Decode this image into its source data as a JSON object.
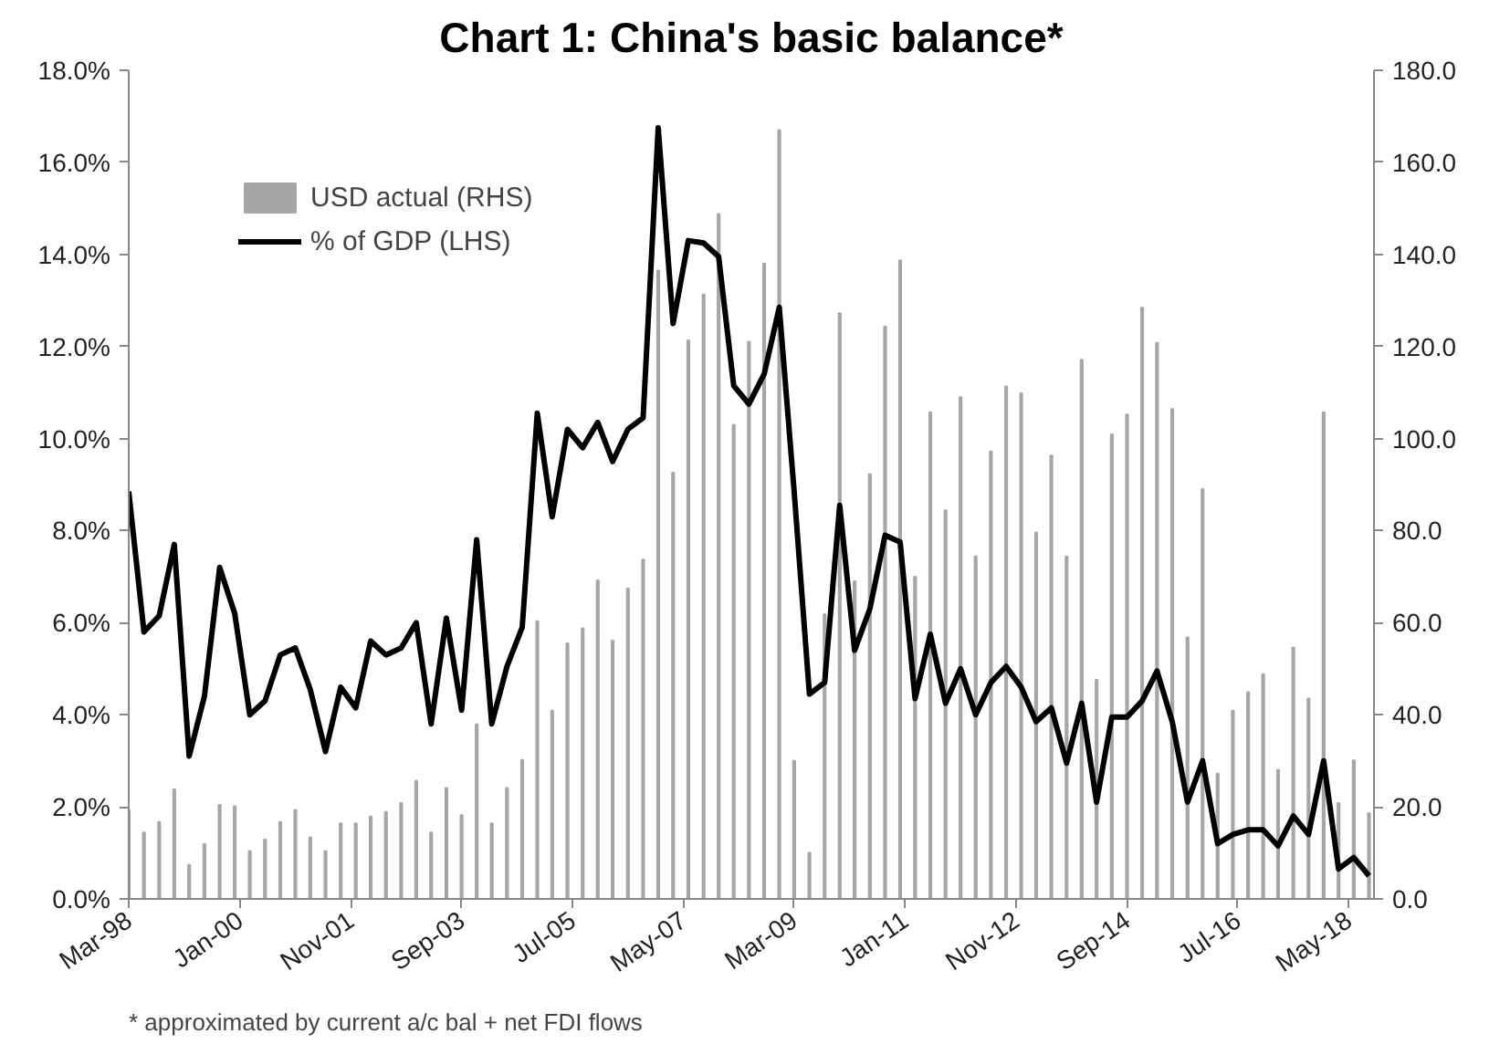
{
  "chart_data": {
    "type": "bar",
    "title": "Chart 1: China's basic balance*",
    "x": [
      "1998-03",
      "1998-06",
      "1998-09",
      "1998-12",
      "1999-03",
      "1999-06",
      "1999-09",
      "1999-12",
      "2000-03",
      "2000-06",
      "2000-09",
      "2000-12",
      "2001-03",
      "2001-06",
      "2001-09",
      "2001-12",
      "2002-03",
      "2002-06",
      "2002-09",
      "2002-12",
      "2003-03",
      "2003-06",
      "2003-09",
      "2003-12",
      "2004-03",
      "2004-06",
      "2004-09",
      "2004-12",
      "2005-03",
      "2005-06",
      "2005-09",
      "2005-12",
      "2006-03",
      "2006-06",
      "2006-09",
      "2006-12",
      "2007-03",
      "2007-06",
      "2007-09",
      "2007-12",
      "2008-03",
      "2008-06",
      "2008-09",
      "2008-12",
      "2009-03",
      "2009-06",
      "2009-09",
      "2009-12",
      "2010-03",
      "2010-06",
      "2010-09",
      "2010-12",
      "2011-03",
      "2011-06",
      "2011-09",
      "2011-12",
      "2012-03",
      "2012-06",
      "2012-09",
      "2012-12",
      "2013-03",
      "2013-06",
      "2013-09",
      "2013-12",
      "2014-03",
      "2014-06",
      "2014-09",
      "2014-12",
      "2015-03",
      "2015-06",
      "2015-09",
      "2015-12",
      "2016-03",
      "2016-06",
      "2016-09",
      "2016-12",
      "2017-03",
      "2017-06",
      "2017-09",
      "2017-12",
      "2018-03",
      "2018-06",
      "2018-09"
    ],
    "series": [
      {
        "name": "USD actual (RHS)",
        "axis": "y2",
        "color": "#a6a6a6",
        "values": [
          19.3,
          14.4,
          16.7,
          23.8,
          7.4,
          11.9,
          20.4,
          20.1,
          10.4,
          12.9,
          16.7,
          19.3,
          13.4,
          10.4,
          16.4,
          16.4,
          17.9,
          18.9,
          20.8,
          25.6,
          14.4,
          24.1,
          18.2,
          37.9,
          16.4,
          24.1,
          30.2,
          60.3,
          40.9,
          55.5,
          58.8,
          69.2,
          56.1,
          67.4,
          73.7,
          136.5,
          92.6,
          121.3,
          131.3,
          148.8,
          103,
          121,
          138,
          167,
          30,
          10,
          61.8,
          127.2,
          69,
          92.3,
          124.3,
          138.7,
          70,
          105.7,
          84.4,
          109,
          74.4,
          97.2,
          111.3,
          109.8,
          79.6,
          96.3,
          74.4,
          117.1,
          47.6,
          100.9,
          105.2,
          128.4,
          120.8,
          106.4,
          56.8,
          89,
          27.2,
          40.9,
          44.9,
          48.8,
          28,
          54.6,
          43.5,
          105.7,
          20.8,
          30.1,
          18.6
        ]
      },
      {
        "name": "% of GDP (LHS)",
        "type": "line",
        "color": "#000000",
        "values": [
          8.85,
          5.8,
          6.15,
          7.7,
          3.1,
          4.4,
          7.2,
          6.2,
          4.0,
          4.3,
          5.3,
          5.45,
          4.55,
          3.2,
          4.6,
          4.15,
          5.6,
          5.3,
          5.45,
          6.0,
          3.8,
          6.1,
          4.1,
          7.8,
          3.8,
          5.05,
          5.9,
          10.55,
          8.3,
          10.2,
          9.8,
          10.35,
          9.5,
          10.2,
          10.45,
          16.75,
          12.5,
          14.3,
          14.25,
          13.95,
          11.15,
          10.75,
          11.4,
          12.85,
          8.85,
          4.45,
          4.7,
          8.55,
          5.4,
          6.3,
          7.9,
          7.75,
          4.35,
          5.75,
          4.25,
          5.0,
          4.0,
          4.7,
          5.05,
          4.6,
          3.85,
          4.15,
          2.95,
          4.25,
          2.1,
          3.95,
          3.95,
          4.3,
          4.95,
          3.85,
          2.1,
          3.0,
          1.2,
          1.4,
          1.5,
          1.5,
          1.15,
          1.8,
          1.4,
          3.0,
          0.65,
          0.9,
          0.5
        ]
      }
    ],
    "xlim": [
      "1998-03",
      "2018-10"
    ],
    "xticks": [
      {
        "value": "1998-03",
        "label": "Mar-98"
      },
      {
        "value": "2000-01",
        "label": "Jan-00"
      },
      {
        "value": "2001-11",
        "label": "Nov-01"
      },
      {
        "value": "2003-09",
        "label": "Sep-03"
      },
      {
        "value": "2005-07",
        "label": "Jul-05"
      },
      {
        "value": "2007-05",
        "label": "May-07"
      },
      {
        "value": "2009-03",
        "label": "Mar-09"
      },
      {
        "value": "2011-01",
        "label": "Jan-11"
      },
      {
        "value": "2012-11",
        "label": "Nov-12"
      },
      {
        "value": "2014-09",
        "label": "Sep-14"
      },
      {
        "value": "2016-07",
        "label": "Jul-16"
      },
      {
        "value": "2018-05",
        "label": "May-18"
      }
    ],
    "ylim": [
      0,
      18
    ],
    "yticks": [
      {
        "value": 0,
        "label": "0.0%"
      },
      {
        "value": 2,
        "label": "2.0%"
      },
      {
        "value": 4,
        "label": "4.0%"
      },
      {
        "value": 6,
        "label": "6.0%"
      },
      {
        "value": 8,
        "label": "8.0%"
      },
      {
        "value": 10,
        "label": "10.0%"
      },
      {
        "value": 12,
        "label": "12.0%"
      },
      {
        "value": 14,
        "label": "14.0%"
      },
      {
        "value": 16,
        "label": "16.0%"
      },
      {
        "value": 18,
        "label": "18.0%"
      }
    ],
    "y2lim": [
      0,
      180
    ],
    "y2ticks": [
      {
        "value": 0,
        "label": "0.0"
      },
      {
        "value": 20,
        "label": "20.0"
      },
      {
        "value": 40,
        "label": "40.0"
      },
      {
        "value": 60,
        "label": "60.0"
      },
      {
        "value": 80,
        "label": "80.0"
      },
      {
        "value": 100,
        "label": "100.0"
      },
      {
        "value": 120,
        "label": "120.0"
      },
      {
        "value": 140,
        "label": "140.0"
      },
      {
        "value": 160,
        "label": "160.0"
      },
      {
        "value": 180,
        "label": "180.0"
      }
    ],
    "grid": false,
    "legend": "top left",
    "annotations": [
      "* approximated by current a/c bal + net FDI flows"
    ]
  }
}
